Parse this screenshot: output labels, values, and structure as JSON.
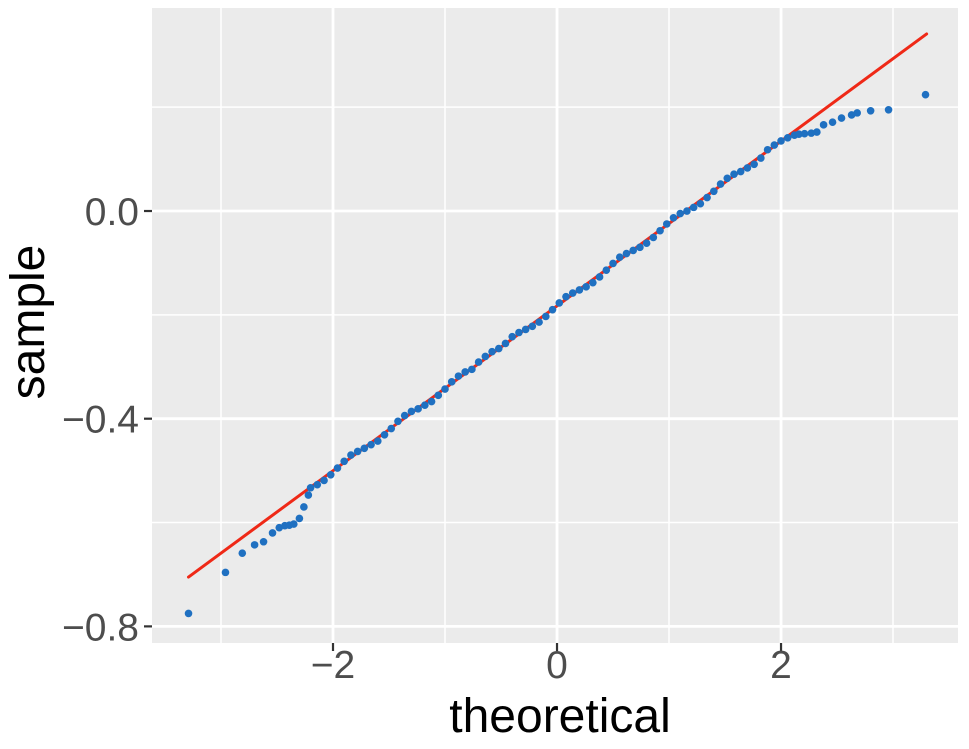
{
  "figure": {
    "background_color": "#ffffff",
    "panel_background_color": "#ebebeb",
    "grid_color": "#ffffff",
    "tick_mark_color": "#333333",
    "tick_label_color": "#4d4d4d",
    "axis_title_color": "#000000",
    "point_color": "#1f70c1",
    "reference_line_color": "#ef2917"
  },
  "chart_data": {
    "type": "scatter",
    "subtype": "qq-plot",
    "title": "",
    "xlabel": "theoretical",
    "ylabel": "sample",
    "xlim": [
      -3.616,
      3.58
    ],
    "ylim": [
      -0.832,
      0.391
    ],
    "x_ticks": [
      -2,
      0,
      2
    ],
    "x_tick_labels": [
      "−2",
      "0",
      "2"
    ],
    "y_ticks": [
      0.0,
      -0.4,
      -0.8
    ],
    "y_tick_labels": [
      "0.0",
      "−0.4",
      "−0.8"
    ],
    "x_minor_gridlines": [
      -3,
      -1,
      1,
      3
    ],
    "y_minor_gridlines": [
      0.2,
      -0.2,
      -0.6
    ],
    "grid": true,
    "legend": "none",
    "series": [
      {
        "name": "qq-points",
        "type": "scatter",
        "points": [
          [
            -3.29,
            -0.775
          ],
          [
            -2.96,
            -0.696
          ],
          [
            -2.81,
            -0.659
          ],
          [
            -2.7,
            -0.643
          ],
          [
            -2.62,
            -0.637
          ],
          [
            -2.54,
            -0.62
          ],
          [
            -2.48,
            -0.61
          ],
          [
            -2.43,
            -0.606
          ],
          [
            -2.39,
            -0.605
          ],
          [
            -2.35,
            -0.603
          ],
          [
            -2.3,
            -0.592
          ],
          [
            -2.26,
            -0.57
          ],
          [
            -2.22,
            -0.547
          ],
          [
            -2.2,
            -0.533
          ],
          [
            -2.14,
            -0.527
          ],
          [
            -2.08,
            -0.519
          ],
          [
            -2.02,
            -0.508
          ],
          [
            -1.96,
            -0.495
          ],
          [
            -1.9,
            -0.482
          ],
          [
            -1.84,
            -0.47
          ],
          [
            -1.78,
            -0.463
          ],
          [
            -1.72,
            -0.457
          ],
          [
            -1.66,
            -0.45
          ],
          [
            -1.6,
            -0.443
          ],
          [
            -1.54,
            -0.431
          ],
          [
            -1.48,
            -0.419
          ],
          [
            -1.42,
            -0.405
          ],
          [
            -1.36,
            -0.394
          ],
          [
            -1.3,
            -0.386
          ],
          [
            -1.24,
            -0.381
          ],
          [
            -1.18,
            -0.374
          ],
          [
            -1.12,
            -0.367
          ],
          [
            -1.06,
            -0.355
          ],
          [
            -1.0,
            -0.343
          ],
          [
            -0.94,
            -0.329
          ],
          [
            -0.88,
            -0.318
          ],
          [
            -0.82,
            -0.31
          ],
          [
            -0.76,
            -0.305
          ],
          [
            -0.7,
            -0.291
          ],
          [
            -0.64,
            -0.28
          ],
          [
            -0.58,
            -0.271
          ],
          [
            -0.52,
            -0.265
          ],
          [
            -0.46,
            -0.255
          ],
          [
            -0.4,
            -0.242
          ],
          [
            -0.34,
            -0.234
          ],
          [
            -0.28,
            -0.228
          ],
          [
            -0.22,
            -0.222
          ],
          [
            -0.16,
            -0.214
          ],
          [
            -0.1,
            -0.203
          ],
          [
            -0.04,
            -0.19
          ],
          [
            0.02,
            -0.177
          ],
          [
            0.08,
            -0.165
          ],
          [
            0.14,
            -0.158
          ],
          [
            0.2,
            -0.152
          ],
          [
            0.26,
            -0.146
          ],
          [
            0.32,
            -0.138
          ],
          [
            0.38,
            -0.127
          ],
          [
            0.44,
            -0.114
          ],
          [
            0.5,
            -0.101
          ],
          [
            0.56,
            -0.089
          ],
          [
            0.62,
            -0.082
          ],
          [
            0.68,
            -0.076
          ],
          [
            0.74,
            -0.07
          ],
          [
            0.8,
            -0.062
          ],
          [
            0.86,
            -0.051
          ],
          [
            0.92,
            -0.038
          ],
          [
            0.98,
            -0.025
          ],
          [
            1.04,
            -0.013
          ],
          [
            1.1,
            -0.005
          ],
          [
            1.16,
            0.0
          ],
          [
            1.22,
            0.007
          ],
          [
            1.28,
            0.014
          ],
          [
            1.34,
            0.026
          ],
          [
            1.4,
            0.038
          ],
          [
            1.46,
            0.052
          ],
          [
            1.52,
            0.063
          ],
          [
            1.58,
            0.071
          ],
          [
            1.64,
            0.076
          ],
          [
            1.7,
            0.083
          ],
          [
            1.76,
            0.09
          ],
          [
            1.82,
            0.102
          ],
          [
            1.88,
            0.118
          ],
          [
            1.94,
            0.127
          ],
          [
            2.0,
            0.135
          ],
          [
            2.06,
            0.141
          ],
          [
            2.12,
            0.146
          ],
          [
            2.16,
            0.148
          ],
          [
            2.21,
            0.149
          ],
          [
            2.27,
            0.15
          ],
          [
            2.32,
            0.152
          ],
          [
            2.38,
            0.166
          ],
          [
            2.46,
            0.171
          ],
          [
            2.54,
            0.179
          ],
          [
            2.63,
            0.185
          ],
          [
            2.68,
            0.189
          ],
          [
            2.8,
            0.193
          ],
          [
            2.96,
            0.195
          ],
          [
            3.29,
            0.224
          ]
        ]
      },
      {
        "name": "qq-reference-line",
        "type": "line",
        "slope": 0.159,
        "intercept": -0.183,
        "endpoints": [
          [
            -3.29,
            -0.705
          ],
          [
            3.3,
            0.341
          ]
        ]
      }
    ]
  }
}
